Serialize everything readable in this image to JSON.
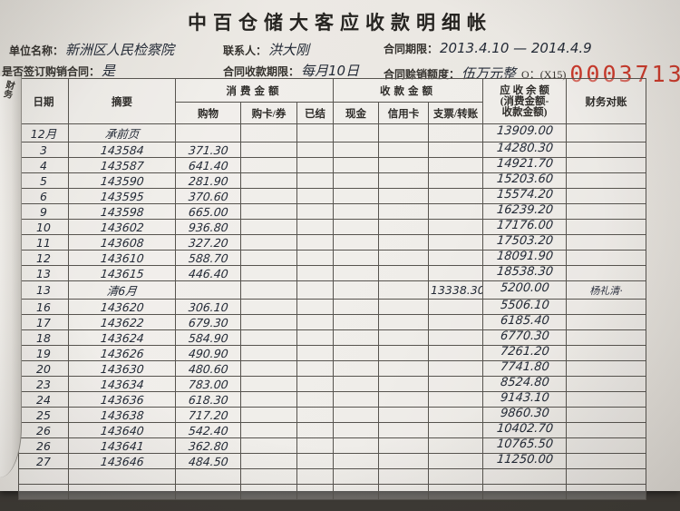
{
  "colors": {
    "ink": "#232a36",
    "stamp_red": "#c8392b",
    "paper": "#e9e6e1",
    "grid_line": "#57544f"
  },
  "title": "中百仓储大客应收款明细帐",
  "info": {
    "unit_label": "单位名称：",
    "unit_value": "新洲区人民检察院",
    "contact_label": "联系人：",
    "contact_value": "洪大刚",
    "period_label": "合同期限：",
    "period_value": "2013.4.10 — 2014.4.9",
    "signed_label": "是否签订购销合同：",
    "signed_value": "是",
    "collection_label": "合同收款期限：",
    "collection_value": "每月10日",
    "credit_label": "合同赊销额度：",
    "credit_value": "伍万元整"
  },
  "serial": {
    "prefix": "O：(X15)",
    "number": "0003713"
  },
  "table": {
    "page_edge_text": "财务",
    "headers": {
      "date": "日期",
      "summary": "摘要",
      "consume_group": "消费金额",
      "consume_sub": [
        "购物",
        "购卡/券",
        "已结"
      ],
      "receive_group": "收款金额",
      "receive_sub": [
        "现金",
        "信用卡",
        "支票/转账"
      ],
      "balance_line1": "应 收 余 额",
      "balance_line2": "(消费金额-",
      "balance_line3": "收款金额)",
      "reconcile": "财务对账"
    },
    "rows": [
      {
        "date": "12月",
        "summary": "承前页",
        "purchase": "",
        "card": "",
        "settled": "",
        "cash": "",
        "credit": "",
        "transfer": "",
        "balance": "13909.00",
        "note": ""
      },
      {
        "date": "3",
        "summary": "143584",
        "purchase": "371.30",
        "card": "",
        "settled": "",
        "cash": "",
        "credit": "",
        "transfer": "",
        "balance": "14280.30",
        "note": ""
      },
      {
        "date": "4",
        "summary": "143587",
        "purchase": "641.40",
        "card": "",
        "settled": "",
        "cash": "",
        "credit": "",
        "transfer": "",
        "balance": "14921.70",
        "note": ""
      },
      {
        "date": "5",
        "summary": "143590",
        "purchase": "281.90",
        "card": "",
        "settled": "",
        "cash": "",
        "credit": "",
        "transfer": "",
        "balance": "15203.60",
        "note": ""
      },
      {
        "date": "6",
        "summary": "143595",
        "purchase": "370.60",
        "card": "",
        "settled": "",
        "cash": "",
        "credit": "",
        "transfer": "",
        "balance": "15574.20",
        "note": ""
      },
      {
        "date": "9",
        "summary": "143598",
        "purchase": "665.00",
        "card": "",
        "settled": "",
        "cash": "",
        "credit": "",
        "transfer": "",
        "balance": "16239.20",
        "note": ""
      },
      {
        "date": "10",
        "summary": "143602",
        "purchase": "936.80",
        "card": "",
        "settled": "",
        "cash": "",
        "credit": "",
        "transfer": "",
        "balance": "17176.00",
        "note": ""
      },
      {
        "date": "11",
        "summary": "143608",
        "purchase": "327.20",
        "card": "",
        "settled": "",
        "cash": "",
        "credit": "",
        "transfer": "",
        "balance": "17503.20",
        "note": ""
      },
      {
        "date": "12",
        "summary": "143610",
        "purchase": "588.70",
        "card": "",
        "settled": "",
        "cash": "",
        "credit": "",
        "transfer": "",
        "balance": "18091.90",
        "note": ""
      },
      {
        "date": "13",
        "summary": "143615",
        "purchase": "446.40",
        "card": "",
        "settled": "",
        "cash": "",
        "credit": "",
        "transfer": "",
        "balance": "18538.30",
        "note": ""
      },
      {
        "date": "13",
        "summary": "清6月",
        "purchase": "",
        "card": "",
        "settled": "",
        "cash": "",
        "credit": "",
        "transfer": "13338.30",
        "balance": "5200.00",
        "note": "杨礼清·"
      },
      {
        "date": "16",
        "summary": "143620",
        "purchase": "306.10",
        "card": "",
        "settled": "",
        "cash": "",
        "credit": "",
        "transfer": "",
        "balance": "5506.10",
        "note": ""
      },
      {
        "date": "17",
        "summary": "143622",
        "purchase": "679.30",
        "card": "",
        "settled": "",
        "cash": "",
        "credit": "",
        "transfer": "",
        "balance": "6185.40",
        "note": ""
      },
      {
        "date": "18",
        "summary": "143624",
        "purchase": "584.90",
        "card": "",
        "settled": "",
        "cash": "",
        "credit": "",
        "transfer": "",
        "balance": "6770.30",
        "note": ""
      },
      {
        "date": "19",
        "summary": "143626",
        "purchase": "490.90",
        "card": "",
        "settled": "",
        "cash": "",
        "credit": "",
        "transfer": "",
        "balance": "7261.20",
        "note": ""
      },
      {
        "date": "20",
        "summary": "143630",
        "purchase": "480.60",
        "card": "",
        "settled": "",
        "cash": "",
        "credit": "",
        "transfer": "",
        "balance": "7741.80",
        "note": ""
      },
      {
        "date": "23",
        "summary": "143634",
        "purchase": "783.00",
        "card": "",
        "settled": "",
        "cash": "",
        "credit": "",
        "transfer": "",
        "balance": "8524.80",
        "note": ""
      },
      {
        "date": "24",
        "summary": "143636",
        "purchase": "618.30",
        "card": "",
        "settled": "",
        "cash": "",
        "credit": "",
        "transfer": "",
        "balance": "9143.10",
        "note": ""
      },
      {
        "date": "25",
        "summary": "143638",
        "purchase": "717.20",
        "card": "",
        "settled": "",
        "cash": "",
        "credit": "",
        "transfer": "",
        "balance": "9860.30",
        "note": ""
      },
      {
        "date": "26",
        "summary": "143640",
        "purchase": "542.40",
        "card": "",
        "settled": "",
        "cash": "",
        "credit": "",
        "transfer": "",
        "balance": "10402.70",
        "note": ""
      },
      {
        "date": "26",
        "summary": "143641",
        "purchase": "362.80",
        "card": "",
        "settled": "",
        "cash": "",
        "credit": "",
        "transfer": "",
        "balance": "10765.50",
        "note": ""
      },
      {
        "date": "27",
        "summary": "143646",
        "purchase": "484.50",
        "card": "",
        "settled": "",
        "cash": "",
        "credit": "",
        "transfer": "",
        "balance": "11250.00",
        "note": ""
      },
      {
        "date": "",
        "summary": "",
        "purchase": "",
        "card": "",
        "settled": "",
        "cash": "",
        "credit": "",
        "transfer": "",
        "balance": "",
        "note": ""
      },
      {
        "date": "",
        "summary": "",
        "purchase": "",
        "card": "",
        "settled": "",
        "cash": "",
        "credit": "",
        "transfer": "",
        "balance": "",
        "note": ""
      }
    ]
  }
}
